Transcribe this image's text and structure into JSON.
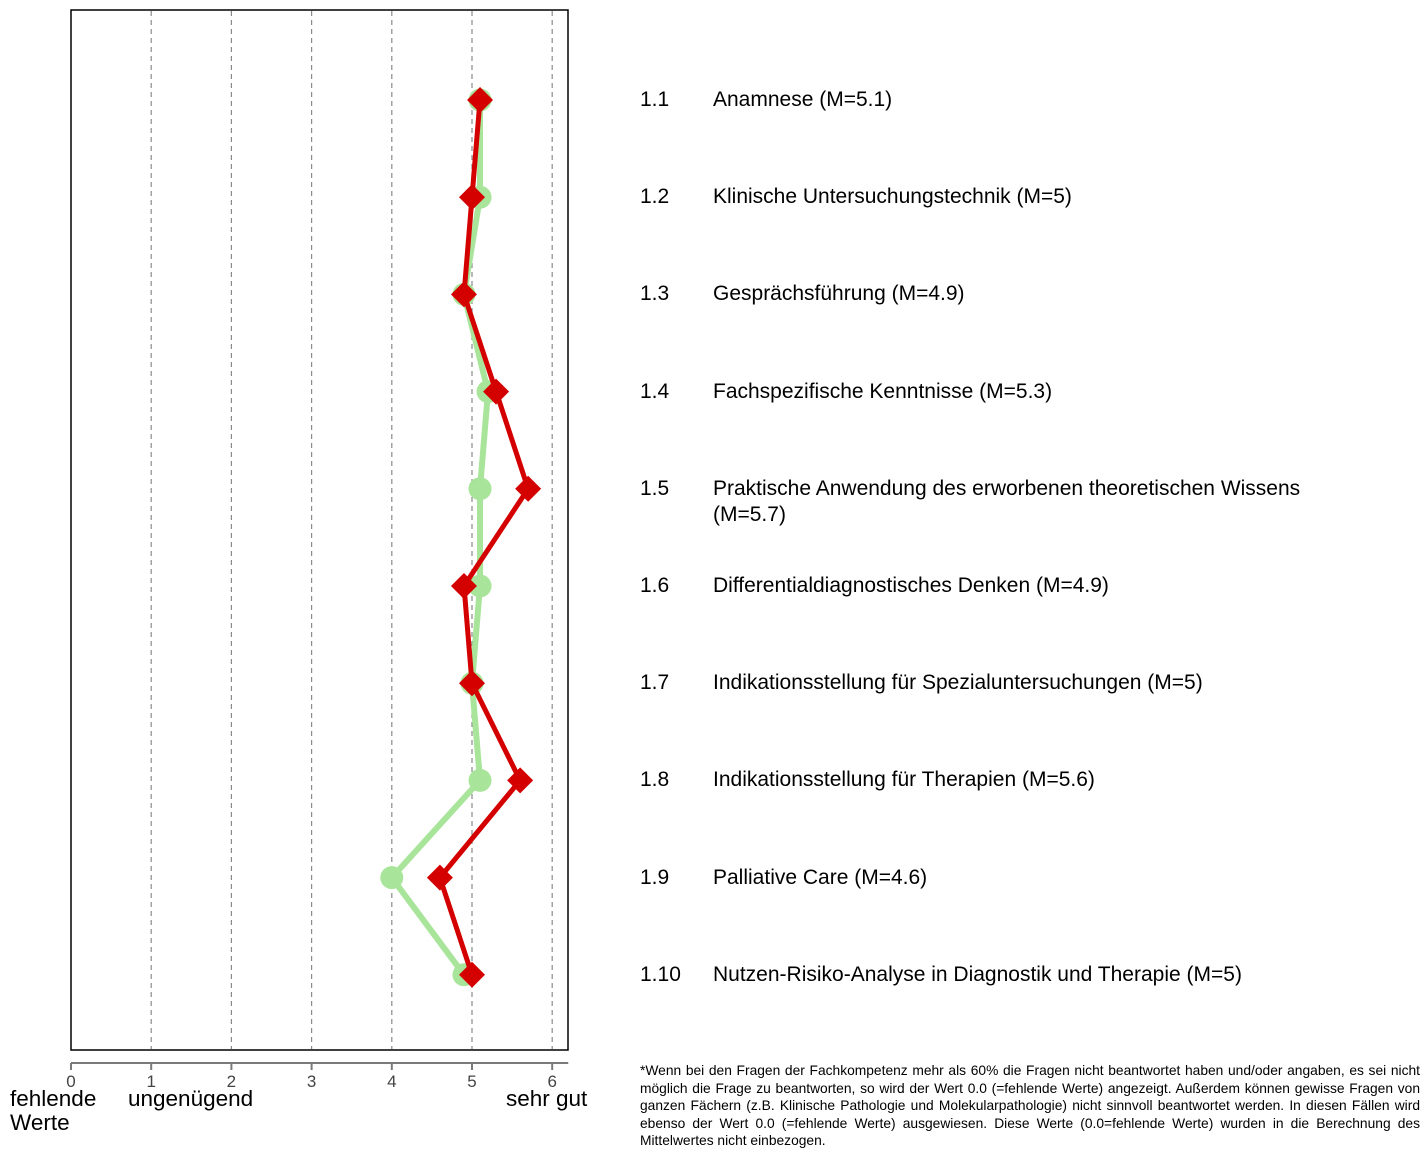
{
  "chart_data": {
    "type": "line",
    "orientation": "horizontal",
    "xlim": [
      0,
      6.2
    ],
    "xticks": [
      "0",
      "1",
      "2",
      "3",
      "4",
      "5",
      "6"
    ],
    "grid": "vertical dashed at integer ticks",
    "x_extremes": {
      "missing_label": "fehlende Werte",
      "low_label": "ungenügend",
      "high_label": "sehr gut"
    },
    "categories": [
      "1.1",
      "1.2",
      "1.3",
      "1.4",
      "1.5",
      "1.6",
      "1.7",
      "1.8",
      "1.9",
      "1.10"
    ],
    "series": [
      {
        "marker": "circle",
        "color": "#a8e59a",
        "values": [
          5.1,
          5.1,
          4.9,
          5.2,
          5.1,
          5.1,
          5.0,
          5.1,
          4.0,
          4.9
        ]
      },
      {
        "marker": "diamond",
        "color": "#d40000",
        "values": [
          5.1,
          5.0,
          4.9,
          5.3,
          5.7,
          4.9,
          5.0,
          5.6,
          4.6,
          5.0
        ]
      }
    ]
  },
  "items": [
    {
      "num": "1.1",
      "label": "Anamnese (M=5.1)"
    },
    {
      "num": "1.2",
      "label": "Klinische Untersuchungstechnik (M=5)"
    },
    {
      "num": "1.3",
      "label": "Gesprächsführung (M=4.9)"
    },
    {
      "num": "1.4",
      "label": "Fachspezifische Kenntnisse (M=5.3)"
    },
    {
      "num": "1.5",
      "label": "Praktische Anwendung des erworbenen theoretischen Wissens (M=5.7)"
    },
    {
      "num": "1.6",
      "label": "Differentialdiagnostisches Denken (M=4.9)"
    },
    {
      "num": "1.7",
      "label": "Indikationsstellung für Spezialuntersuchungen (M=5)"
    },
    {
      "num": "1.8",
      "label": "Indikationsstellung für Therapien (M=5.6)"
    },
    {
      "num": "1.9",
      "label": "Palliative Care (M=4.6)"
    },
    {
      "num": "1.10",
      "label": "Nutzen-Risiko-Analyse in Diagnostik und Therapie (M=5)"
    }
  ],
  "footnote": "*Wenn bei den Fragen der Fachkompetenz mehr als 60% die Fragen nicht beantwortet haben und/oder angaben, es sei nicht möglich die Frage zu beantworten, so wird der Wert 0.0 (=fehlende Werte) angezeigt. Außerdem können gewisse Fragen von ganzen Fächern (z.B. Klinische Pathologie und Molekularpathologie) nicht sinnvoll beantwortet werden. In diesen Fällen wird ebenso der Wert 0.0 (=fehlende Werte) ausgewiesen. Diese Werte (0.0=fehlende Werte) wurden in die Berechnung des Mittelwertes nicht einbezogen."
}
